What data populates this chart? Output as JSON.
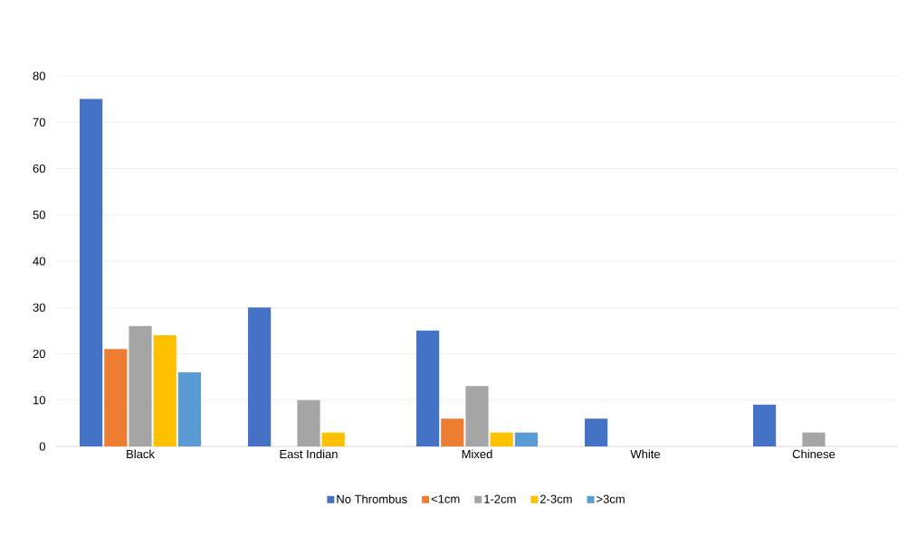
{
  "chart_data": {
    "type": "bar",
    "categories": [
      "Black",
      "East Indian",
      "Mixed",
      "White",
      "Chinese"
    ],
    "series": [
      {
        "name": "No Thrombus",
        "color": "#4472c4",
        "values": [
          75,
          30,
          25,
          6,
          9
        ]
      },
      {
        "name": "<1cm",
        "color": "#ed7d31",
        "values": [
          21,
          0,
          6,
          0,
          0
        ]
      },
      {
        "name": "1-2cm",
        "color": "#a5a5a5",
        "values": [
          26,
          10,
          13,
          0,
          3
        ]
      },
      {
        "name": "2-3cm",
        "color": "#ffc000",
        "values": [
          24,
          3,
          3,
          0,
          0
        ]
      },
      {
        "name": ">3cm",
        "color": "#5b9bd5",
        "values": [
          16,
          0,
          3,
          0,
          0
        ]
      }
    ],
    "ylim": [
      0,
      80
    ],
    "yticks": [
      0,
      10,
      20,
      30,
      40,
      50,
      60,
      70,
      80
    ],
    "grid": "y",
    "legend": "bottom"
  }
}
